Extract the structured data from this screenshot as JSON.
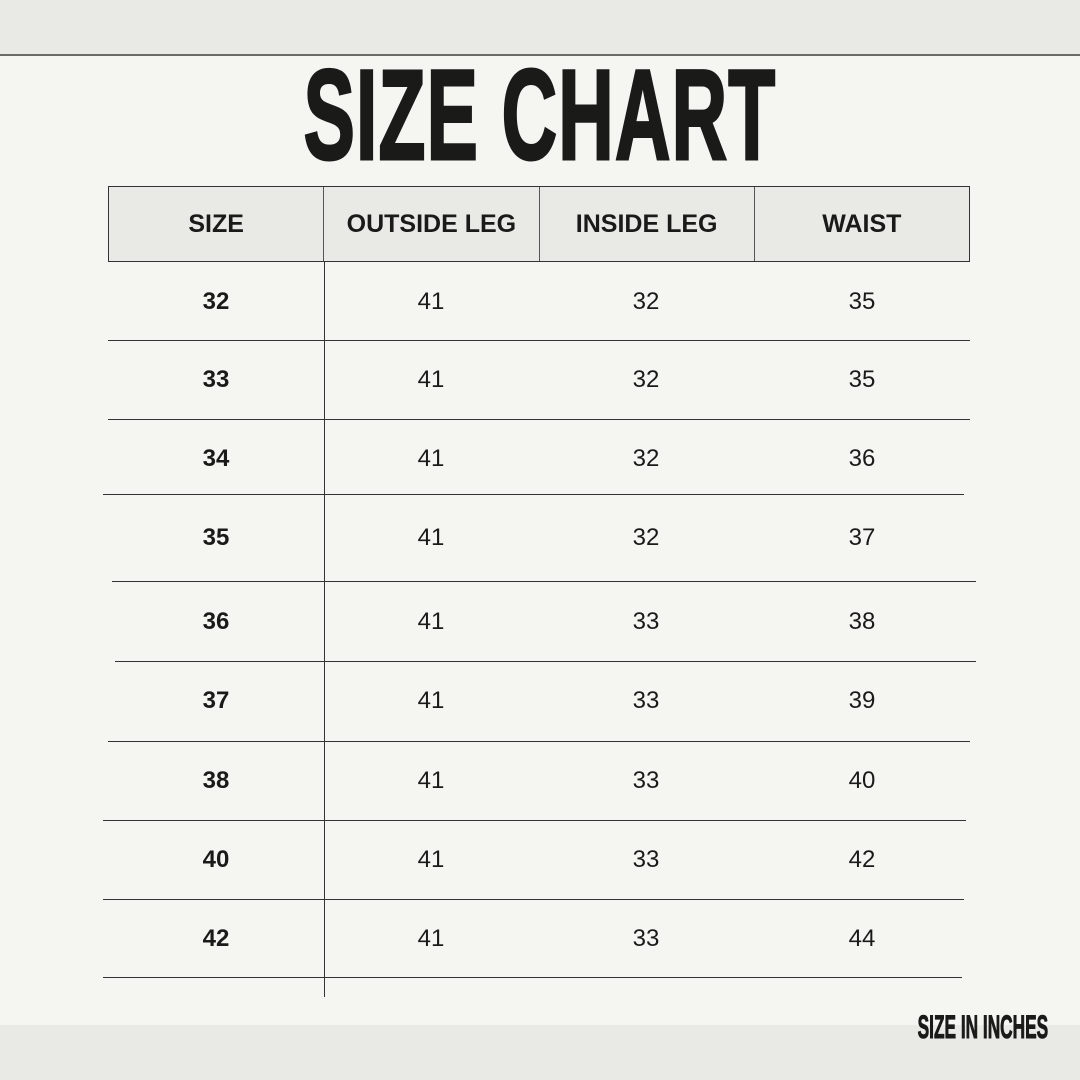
{
  "title": "SIZE CHART",
  "footer": "SIZE IN INCHES",
  "colors": {
    "background": "#f5f5f2",
    "band": "#e9eae5",
    "text": "#1a1a18"
  },
  "chart_data": {
    "type": "table",
    "title": "SIZE CHART",
    "columns": [
      "SIZE",
      "OUTSIDE LEG",
      "INSIDE LEG",
      "WAIST"
    ],
    "rows": [
      [
        "32",
        "41",
        "32",
        "35"
      ],
      [
        "33",
        "41",
        "32",
        "35"
      ],
      [
        "34",
        "41",
        "32",
        "36"
      ],
      [
        "35",
        "41",
        "32",
        "37"
      ],
      [
        "36",
        "41",
        "33",
        "38"
      ],
      [
        "37",
        "41",
        "33",
        "39"
      ],
      [
        "38",
        "41",
        "33",
        "40"
      ],
      [
        "40",
        "41",
        "33",
        "42"
      ],
      [
        "42",
        "41",
        "33",
        "44"
      ]
    ],
    "note": "SIZE IN INCHES"
  }
}
